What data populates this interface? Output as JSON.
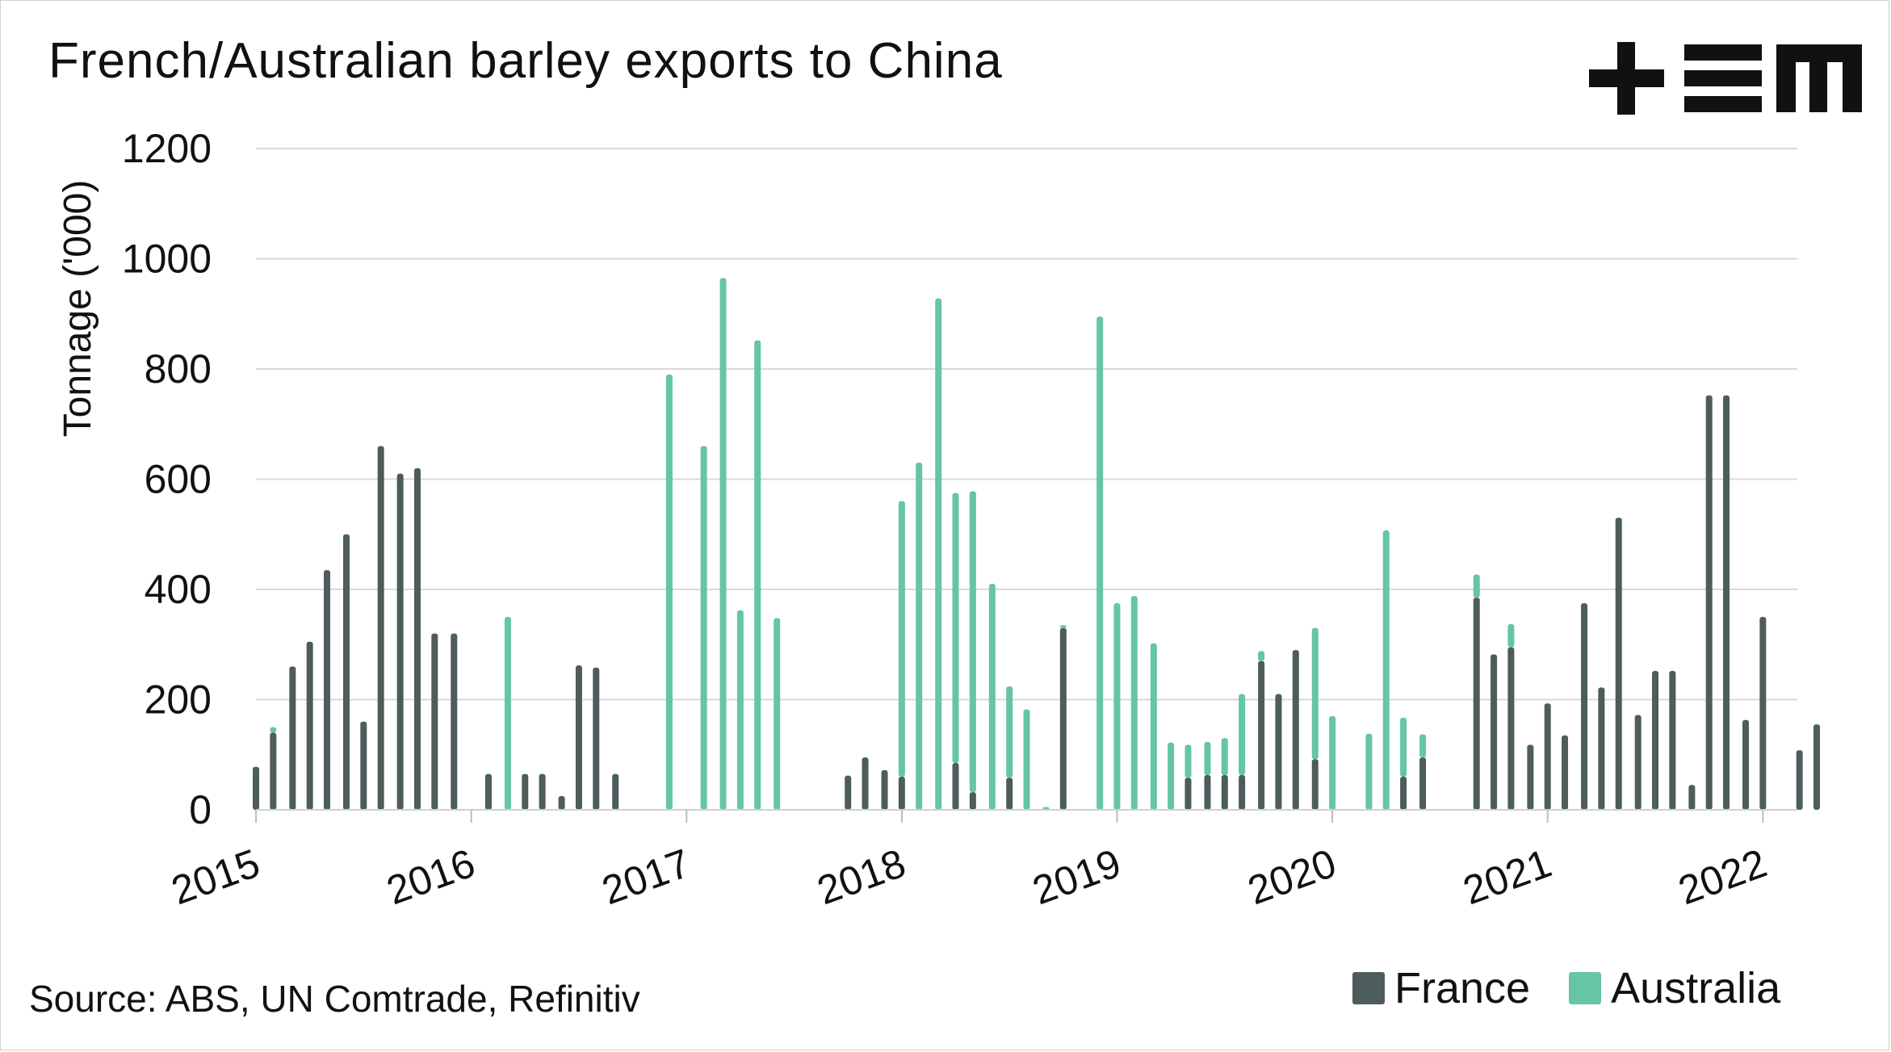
{
  "chart_data": {
    "type": "bar",
    "title": "French/Australian barley exports to China",
    "xlabel": "",
    "ylabel": "Tonnage ('000)",
    "ylim": [
      0,
      1200
    ],
    "yticks": [
      0,
      200,
      400,
      600,
      800,
      1000,
      1200
    ],
    "xlim": [
      2015.0,
      2022.16
    ],
    "xticks": [
      2015,
      2016,
      2017,
      2018,
      2019,
      2020,
      2021,
      2022
    ],
    "stacked": true,
    "grid": true,
    "legend_position": "bottom-right",
    "source": "Source: ABS, UN Comtrade, Refinitiv",
    "series": [
      {
        "name": "France",
        "color": "#4d5c5c"
      },
      {
        "name": "Australia",
        "color": "#66c5a2"
      }
    ],
    "points": [
      {
        "x": 2015.0,
        "france": 78,
        "australia": 0
      },
      {
        "x": 2015.08,
        "france": 140,
        "australia": 10
      },
      {
        "x": 2015.17,
        "france": 260,
        "australia": 0
      },
      {
        "x": 2015.25,
        "france": 305,
        "australia": 0
      },
      {
        "x": 2015.33,
        "france": 435,
        "australia": 0
      },
      {
        "x": 2015.42,
        "france": 500,
        "australia": 0
      },
      {
        "x": 2015.5,
        "france": 160,
        "australia": 0
      },
      {
        "x": 2015.58,
        "france": 660,
        "australia": 0
      },
      {
        "x": 2015.67,
        "france": 610,
        "australia": 0
      },
      {
        "x": 2015.75,
        "france": 620,
        "australia": 0
      },
      {
        "x": 2015.83,
        "france": 320,
        "australia": 0
      },
      {
        "x": 2015.92,
        "france": 320,
        "australia": 0
      },
      {
        "x": 2016.0,
        "france": 0,
        "australia": 0
      },
      {
        "x": 2016.08,
        "france": 65,
        "australia": 0
      },
      {
        "x": 2016.17,
        "france": 0,
        "australia": 350
      },
      {
        "x": 2016.25,
        "france": 65,
        "australia": 0
      },
      {
        "x": 2016.33,
        "france": 65,
        "australia": 0
      },
      {
        "x": 2016.42,
        "france": 25,
        "australia": 0
      },
      {
        "x": 2016.5,
        "france": 262,
        "australia": 0
      },
      {
        "x": 2016.58,
        "france": 258,
        "australia": 0
      },
      {
        "x": 2016.67,
        "france": 65,
        "australia": 0
      },
      {
        "x": 2016.75,
        "france": 0,
        "australia": 0
      },
      {
        "x": 2016.83,
        "france": 0,
        "australia": 0
      },
      {
        "x": 2016.92,
        "france": 0,
        "australia": 790
      },
      {
        "x": 2017.0,
        "france": 0,
        "australia": 0
      },
      {
        "x": 2017.08,
        "france": 0,
        "australia": 660
      },
      {
        "x": 2017.17,
        "france": 0,
        "australia": 965
      },
      {
        "x": 2017.25,
        "france": 0,
        "australia": 362
      },
      {
        "x": 2017.33,
        "france": 0,
        "australia": 852
      },
      {
        "x": 2017.42,
        "france": 0,
        "australia": 348
      },
      {
        "x": 2017.5,
        "france": 0,
        "australia": 0
      },
      {
        "x": 2017.58,
        "france": 0,
        "australia": 0
      },
      {
        "x": 2017.67,
        "france": 0,
        "australia": 0
      },
      {
        "x": 2017.75,
        "france": 62,
        "australia": 0
      },
      {
        "x": 2017.83,
        "france": 95,
        "australia": 0
      },
      {
        "x": 2017.92,
        "france": 72,
        "australia": 0
      },
      {
        "x": 2018.0,
        "france": 60,
        "australia": 500
      },
      {
        "x": 2018.08,
        "france": 0,
        "australia": 630
      },
      {
        "x": 2018.17,
        "france": 0,
        "australia": 928
      },
      {
        "x": 2018.25,
        "france": 85,
        "australia": 490
      },
      {
        "x": 2018.33,
        "france": 32,
        "australia": 546
      },
      {
        "x": 2018.42,
        "france": 0,
        "australia": 410
      },
      {
        "x": 2018.5,
        "france": 58,
        "australia": 166
      },
      {
        "x": 2018.58,
        "france": 0,
        "australia": 182
      },
      {
        "x": 2018.67,
        "france": 0,
        "australia": 5
      },
      {
        "x": 2018.75,
        "france": 330,
        "australia": 5
      },
      {
        "x": 2018.83,
        "france": 0,
        "australia": 0
      },
      {
        "x": 2018.92,
        "france": 0,
        "australia": 895
      },
      {
        "x": 2019.0,
        "france": 0,
        "australia": 375
      },
      {
        "x": 2019.08,
        "france": 0,
        "australia": 388
      },
      {
        "x": 2019.17,
        "france": 0,
        "australia": 302
      },
      {
        "x": 2019.25,
        "france": 0,
        "australia": 122
      },
      {
        "x": 2019.33,
        "france": 58,
        "australia": 60
      },
      {
        "x": 2019.42,
        "france": 63,
        "australia": 60
      },
      {
        "x": 2019.5,
        "france": 63,
        "australia": 67
      },
      {
        "x": 2019.58,
        "france": 63,
        "australia": 147
      },
      {
        "x": 2019.67,
        "france": 270,
        "australia": 18
      },
      {
        "x": 2019.75,
        "france": 210,
        "australia": 0
      },
      {
        "x": 2019.83,
        "france": 290,
        "australia": 0
      },
      {
        "x": 2019.92,
        "france": 92,
        "australia": 238
      },
      {
        "x": 2020.0,
        "france": 0,
        "australia": 170
      },
      {
        "x": 2020.08,
        "france": 0,
        "australia": 0
      },
      {
        "x": 2020.17,
        "france": 0,
        "australia": 138
      },
      {
        "x": 2020.25,
        "france": 0,
        "australia": 507
      },
      {
        "x": 2020.33,
        "france": 60,
        "australia": 107
      },
      {
        "x": 2020.42,
        "france": 95,
        "australia": 42
      },
      {
        "x": 2020.5,
        "france": 0,
        "australia": 0
      },
      {
        "x": 2020.58,
        "france": 0,
        "australia": 0
      },
      {
        "x": 2020.67,
        "france": 385,
        "australia": 42
      },
      {
        "x": 2020.75,
        "france": 282,
        "australia": 0
      },
      {
        "x": 2020.83,
        "france": 295,
        "australia": 42
      },
      {
        "x": 2020.92,
        "france": 118,
        "australia": 0
      },
      {
        "x": 2021.0,
        "france": 193,
        "australia": 0
      },
      {
        "x": 2021.08,
        "france": 135,
        "australia": 0
      },
      {
        "x": 2021.17,
        "france": 375,
        "australia": 0
      },
      {
        "x": 2021.25,
        "france": 222,
        "australia": 0
      },
      {
        "x": 2021.33,
        "france": 530,
        "australia": 0
      },
      {
        "x": 2021.42,
        "france": 172,
        "australia": 0
      },
      {
        "x": 2021.5,
        "france": 252,
        "australia": 0
      },
      {
        "x": 2021.58,
        "france": 252,
        "australia": 0
      },
      {
        "x": 2021.67,
        "france": 45,
        "australia": 0
      },
      {
        "x": 2021.75,
        "france": 752,
        "australia": 0
      },
      {
        "x": 2021.83,
        "france": 752,
        "australia": 0
      },
      {
        "x": 2021.92,
        "france": 163,
        "australia": 0
      },
      {
        "x": 2022.0,
        "france": 350,
        "australia": 0
      },
      {
        "x": 2022.08,
        "france": 0,
        "australia": 0
      },
      {
        "x": 2022.17,
        "france": 108,
        "australia": 0
      },
      {
        "x": 2022.25,
        "france": 155,
        "australia": 0
      }
    ]
  },
  "logo": {
    "name": "+EM logo"
  }
}
